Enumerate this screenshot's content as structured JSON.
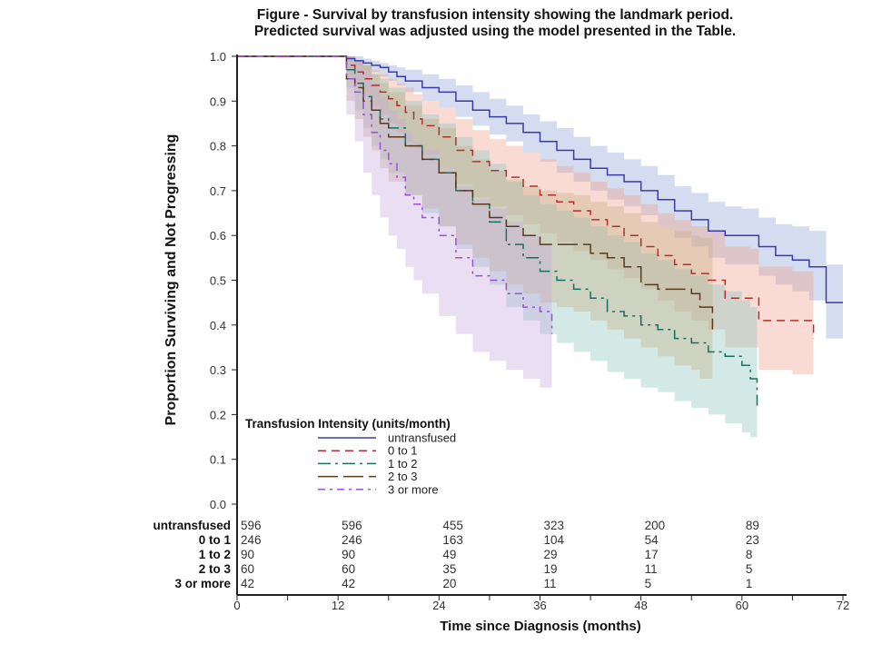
{
  "title_lines": [
    "Figure - Survival by transfusion intensity showing the landmark period.",
    "Predicted survival was adjusted using the model presented in the Table."
  ],
  "chart_data": {
    "type": "line",
    "subtype": "kaplan-meier step with confidence bands",
    "title": "Figure - Survival by transfusion intensity showing the landmark period. Predicted survival was adjusted using the model presented in the Table.",
    "xlabel": "Time since Diagnosis (months)",
    "ylabel": "Proportion Surviving and Not Progressing",
    "xlim": [
      0,
      72
    ],
    "ylim": [
      0,
      1.0
    ],
    "xticks": [
      0,
      12,
      24,
      36,
      48,
      60,
      72
    ],
    "yticks": [
      "0.0",
      "0.1",
      "0.2",
      "0.3",
      "0.4",
      "0.5",
      "0.6",
      "0.7",
      "0.8",
      "0.9",
      "1.0"
    ],
    "grid": false,
    "legend": {
      "title": "Transfusion Intensity (units/month)",
      "placement": "bottom-left inside plot"
    },
    "series": [
      {
        "name": "untransfused",
        "color": "#3a3ab0",
        "band_color": "#8ea3d4",
        "dash": "",
        "x": [
          0,
          12,
          13,
          14,
          15,
          16,
          17,
          18,
          19,
          20,
          22,
          24,
          26,
          28,
          30,
          32,
          34,
          36,
          38,
          40,
          42,
          44,
          46,
          48,
          50,
          52,
          54,
          56,
          58,
          60,
          62,
          64,
          66,
          68,
          70,
          72
        ],
        "y": [
          1.0,
          1.0,
          0.995,
          0.99,
          0.985,
          0.98,
          0.975,
          0.965,
          0.955,
          0.945,
          0.93,
          0.92,
          0.9,
          0.88,
          0.865,
          0.85,
          0.83,
          0.81,
          0.79,
          0.77,
          0.75,
          0.735,
          0.72,
          0.7,
          0.68,
          0.655,
          0.635,
          0.61,
          0.6,
          0.6,
          0.575,
          0.555,
          0.545,
          0.53,
          0.45,
          0.45
        ],
        "upper": [
          1.0,
          1.0,
          1.0,
          1.0,
          0.995,
          0.99,
          0.985,
          0.98,
          0.975,
          0.97,
          0.96,
          0.95,
          0.935,
          0.92,
          0.905,
          0.89,
          0.87,
          0.855,
          0.84,
          0.82,
          0.8,
          0.785,
          0.77,
          0.755,
          0.735,
          0.71,
          0.695,
          0.675,
          0.665,
          0.66,
          0.64,
          0.625,
          0.62,
          0.61,
          0.535,
          0.53
        ],
        "lower": [
          1.0,
          1.0,
          0.99,
          0.98,
          0.97,
          0.965,
          0.955,
          0.945,
          0.935,
          0.92,
          0.9,
          0.885,
          0.865,
          0.845,
          0.825,
          0.81,
          0.785,
          0.765,
          0.74,
          0.72,
          0.7,
          0.68,
          0.665,
          0.645,
          0.62,
          0.595,
          0.575,
          0.55,
          0.535,
          0.535,
          0.51,
          0.49,
          0.475,
          0.455,
          0.37,
          0.36
        ]
      },
      {
        "name": "0 to 1",
        "color": "#b03030",
        "band_color": "#eea08c",
        "dash": "9,6",
        "x": [
          0,
          12,
          13,
          14,
          15,
          16,
          17,
          18,
          19,
          20,
          21,
          22,
          24,
          26,
          28,
          30,
          32,
          34,
          36,
          38,
          40,
          42,
          44,
          46,
          48,
          50,
          52,
          54,
          56,
          58,
          61,
          62,
          66,
          68.5
        ],
        "y": [
          1.0,
          1.0,
          0.98,
          0.965,
          0.95,
          0.935,
          0.92,
          0.905,
          0.89,
          0.875,
          0.86,
          0.845,
          0.82,
          0.79,
          0.765,
          0.745,
          0.73,
          0.71,
          0.69,
          0.675,
          0.655,
          0.635,
          0.62,
          0.6,
          0.575,
          0.555,
          0.535,
          0.515,
          0.5,
          0.46,
          0.46,
          0.41,
          0.41,
          0.37
        ],
        "upper": [
          1.0,
          1.0,
          1.0,
          0.99,
          0.98,
          0.97,
          0.96,
          0.95,
          0.94,
          0.93,
          0.915,
          0.9,
          0.885,
          0.86,
          0.835,
          0.815,
          0.8,
          0.785,
          0.77,
          0.755,
          0.74,
          0.72,
          0.705,
          0.69,
          0.67,
          0.65,
          0.635,
          0.62,
          0.61,
          0.575,
          0.57,
          0.53,
          0.52,
          0.5
        ],
        "lower": [
          1.0,
          1.0,
          0.95,
          0.93,
          0.91,
          0.89,
          0.87,
          0.85,
          0.83,
          0.81,
          0.795,
          0.78,
          0.75,
          0.715,
          0.685,
          0.665,
          0.645,
          0.625,
          0.605,
          0.585,
          0.565,
          0.545,
          0.525,
          0.505,
          0.48,
          0.455,
          0.43,
          0.41,
          0.39,
          0.35,
          0.35,
          0.3,
          0.29,
          0.27
        ]
      },
      {
        "name": "1 to 2",
        "color": "#1a6e60",
        "band_color": "#88c4bc",
        "dash": "14,5,3,5",
        "x": [
          0,
          12,
          13,
          14,
          15,
          16,
          17,
          18,
          20,
          22,
          24,
          26,
          28,
          30,
          32,
          34,
          36,
          38,
          40,
          42,
          44,
          46,
          48,
          50,
          52,
          54,
          56,
          58,
          60,
          61,
          61.8
        ],
        "y": [
          1.0,
          1.0,
          0.97,
          0.94,
          0.91,
          0.88,
          0.86,
          0.84,
          0.8,
          0.77,
          0.74,
          0.7,
          0.67,
          0.63,
          0.58,
          0.55,
          0.52,
          0.5,
          0.48,
          0.46,
          0.43,
          0.42,
          0.4,
          0.39,
          0.37,
          0.36,
          0.34,
          0.33,
          0.31,
          0.28,
          0.22
        ],
        "upper": [
          1.0,
          1.0,
          1.0,
          0.99,
          0.98,
          0.96,
          0.95,
          0.93,
          0.9,
          0.87,
          0.85,
          0.82,
          0.79,
          0.76,
          0.72,
          0.69,
          0.67,
          0.655,
          0.64,
          0.62,
          0.6,
          0.585,
          0.56,
          0.545,
          0.525,
          0.51,
          0.49,
          0.475,
          0.455,
          0.44,
          0.41
        ],
        "lower": [
          1.0,
          1.0,
          0.93,
          0.88,
          0.84,
          0.8,
          0.77,
          0.74,
          0.69,
          0.65,
          0.62,
          0.57,
          0.53,
          0.49,
          0.44,
          0.41,
          0.38,
          0.36,
          0.34,
          0.32,
          0.295,
          0.28,
          0.26,
          0.25,
          0.23,
          0.215,
          0.2,
          0.18,
          0.16,
          0.15,
          0.13
        ]
      },
      {
        "name": "2 to 3",
        "color": "#5a3a1a",
        "band_color": "#c4ad86",
        "dash": "22,6",
        "x": [
          0,
          12,
          13,
          14,
          15,
          16,
          17,
          18,
          20,
          22,
          24,
          26,
          28,
          30,
          32,
          34,
          36,
          38,
          40,
          42,
          44,
          46,
          48,
          50,
          52,
          54,
          55,
          56.5
        ],
        "y": [
          1.0,
          1.0,
          0.95,
          0.93,
          0.9,
          0.88,
          0.85,
          0.82,
          0.8,
          0.77,
          0.74,
          0.7,
          0.67,
          0.64,
          0.62,
          0.6,
          0.58,
          0.58,
          0.58,
          0.56,
          0.55,
          0.53,
          0.49,
          0.48,
          0.48,
          0.47,
          0.44,
          0.39
        ],
        "upper": [
          1.0,
          1.0,
          1.0,
          0.99,
          0.98,
          0.96,
          0.94,
          0.92,
          0.89,
          0.86,
          0.84,
          0.8,
          0.77,
          0.745,
          0.725,
          0.71,
          0.7,
          0.695,
          0.69,
          0.675,
          0.665,
          0.65,
          0.63,
          0.62,
          0.61,
          0.6,
          0.595,
          0.58
        ],
        "lower": [
          1.0,
          1.0,
          0.9,
          0.86,
          0.82,
          0.79,
          0.75,
          0.72,
          0.69,
          0.66,
          0.62,
          0.58,
          0.55,
          0.52,
          0.49,
          0.47,
          0.45,
          0.44,
          0.43,
          0.41,
          0.39,
          0.37,
          0.35,
          0.33,
          0.31,
          0.3,
          0.28,
          0.24
        ]
      },
      {
        "name": "3 or more",
        "color": "#9a50d8",
        "band_color": "#c8a8e0",
        "dash": "8,5,3,5",
        "x": [
          0,
          12,
          13,
          14,
          15,
          16,
          17,
          18,
          19,
          20,
          21,
          22,
          24,
          26,
          28,
          30,
          32,
          34,
          36,
          37.4
        ],
        "y": [
          1.0,
          1.0,
          0.95,
          0.92,
          0.87,
          0.83,
          0.79,
          0.76,
          0.73,
          0.69,
          0.67,
          0.64,
          0.6,
          0.55,
          0.51,
          0.5,
          0.47,
          0.44,
          0.43,
          0.38
        ],
        "upper": [
          1.0,
          1.0,
          1.0,
          0.99,
          0.97,
          0.94,
          0.91,
          0.88,
          0.86,
          0.83,
          0.81,
          0.79,
          0.75,
          0.71,
          0.68,
          0.66,
          0.63,
          0.6,
          0.58,
          0.55
        ],
        "lower": [
          1.0,
          1.0,
          0.87,
          0.81,
          0.74,
          0.69,
          0.64,
          0.6,
          0.57,
          0.53,
          0.5,
          0.47,
          0.42,
          0.38,
          0.34,
          0.32,
          0.3,
          0.28,
          0.26,
          0.24
        ]
      }
    ],
    "risk_table": {
      "times": [
        0,
        12,
        24,
        36,
        48,
        60
      ],
      "rows": [
        {
          "name": "untransfused",
          "values": [
            "596",
            "596",
            "455",
            "323",
            "200",
            "89"
          ]
        },
        {
          "name": "0 to 1",
          "values": [
            "246",
            "246",
            "163",
            "104",
            "54",
            "23"
          ]
        },
        {
          "name": "1 to 2",
          "values": [
            "90",
            "90",
            "49",
            "29",
            "17",
            "8"
          ]
        },
        {
          "name": "2 to 3",
          "values": [
            "60",
            "60",
            "35",
            "19",
            "11",
            "5"
          ]
        },
        {
          "name": "3 or more",
          "values": [
            "42",
            "42",
            "20",
            "11",
            "5",
            "1"
          ]
        }
      ]
    }
  }
}
